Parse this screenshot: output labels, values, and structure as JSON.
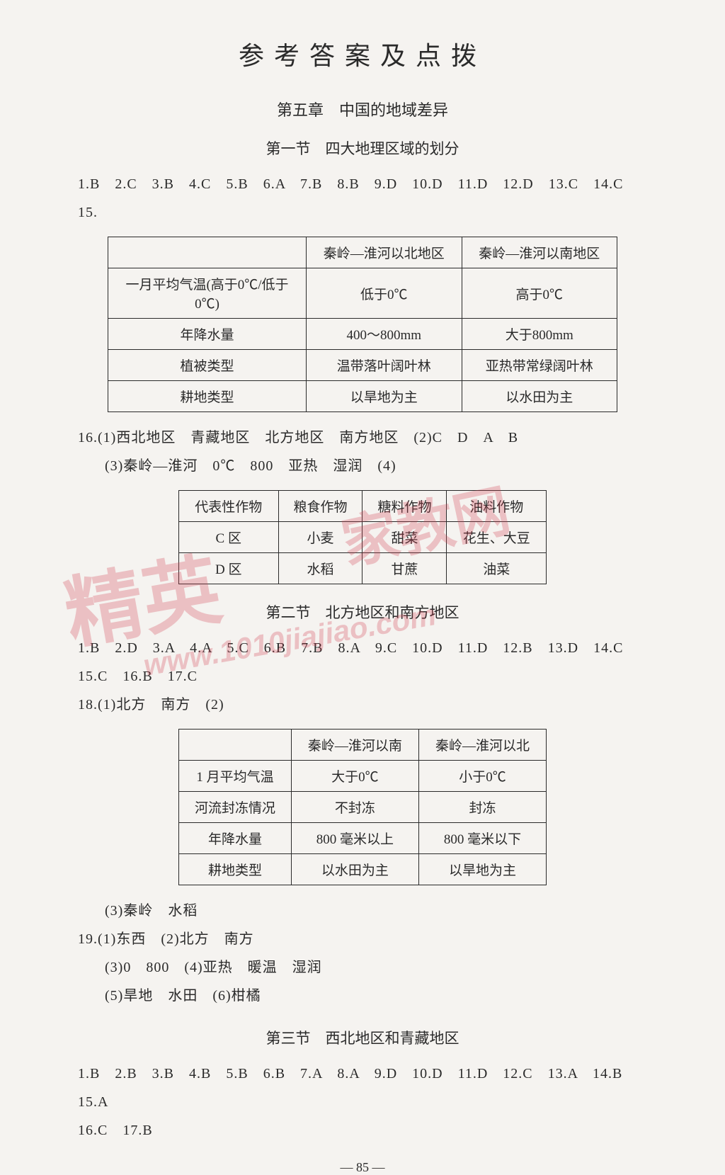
{
  "colors": {
    "background": "#f5f3f0",
    "text": "#2a2a2a",
    "border": "#2a2a2a",
    "watermark": "rgba(209,60,80,0.28)"
  },
  "typography": {
    "body_font": "SimSun",
    "title_font": "KaiTi",
    "body_size_pt": 15,
    "title_size_pt": 28
  },
  "main_title": "参考答案及点拨",
  "chapter_title": "第五章　中国的地域差异",
  "section1": {
    "title": "第一节　四大地理区域的划分",
    "answers_line1": "1.B　2.C　3.B　4.C　5.B　6.A　7.B　8.B　9.D　10.D　11.D　12.D　13.C　14.C",
    "answers_line2": "15.",
    "table": {
      "type": "table",
      "columns": [
        "",
        "秦岭—淮河以北地区",
        "秦岭—淮河以南地区"
      ],
      "rows": [
        [
          "一月平均气温(高于0℃/低于0℃)",
          "低于0℃",
          "高于0℃"
        ],
        [
          "年降水量",
          "400～800mm",
          "大于800mm"
        ],
        [
          "植被类型",
          "温带落叶阔叶林",
          "亚热带常绿阔叶林"
        ],
        [
          "耕地类型",
          "以旱地为主",
          "以水田为主"
        ]
      ],
      "border_color": "#2a2a2a",
      "cell_fontsize": 19
    },
    "q16_line1": "16.(1)西北地区　青藏地区　北方地区　南方地区　(2)C　D　A　B",
    "q16_line2": "(3)秦岭—淮河　0℃　800　亚热　湿润　(4)",
    "table2": {
      "type": "table",
      "columns": [
        "代表性作物",
        "粮食作物",
        "糖料作物",
        "油料作物"
      ],
      "rows": [
        [
          "C 区",
          "小麦",
          "甜菜",
          "花生、大豆"
        ],
        [
          "D 区",
          "水稻",
          "甘蔗",
          "油菜"
        ]
      ],
      "border_color": "#2a2a2a",
      "cell_fontsize": 19
    }
  },
  "section2": {
    "title": "第二节　北方地区和南方地区",
    "answers_line1": "1.B　2.D　3.A　4.A　5.C　6.B　7.B　8.A　9.C　10.D　11.D　12.B　13.D　14.C",
    "answers_line2": "15.C　16.B　17.C",
    "q18_line1": "18.(1)北方　南方　(2)",
    "table": {
      "type": "table",
      "columns": [
        "",
        "秦岭—淮河以南",
        "秦岭—淮河以北"
      ],
      "rows": [
        [
          "1 月平均气温",
          "大于0℃",
          "小于0℃"
        ],
        [
          "河流封冻情况",
          "不封冻",
          "封冻"
        ],
        [
          "年降水量",
          "800 毫米以上",
          "800 毫米以下"
        ],
        [
          "耕地类型",
          "以水田为主",
          "以旱地为主"
        ]
      ],
      "border_color": "#2a2a2a",
      "cell_fontsize": 19
    },
    "q18_line2": "(3)秦岭　水稻",
    "q19_line1": "19.(1)东西　(2)北方　南方",
    "q19_line2": "(3)0　800　(4)亚热　暖温　湿润",
    "q19_line3": "(5)旱地　水田　(6)柑橘"
  },
  "section3": {
    "title": "第三节　西北地区和青藏地区",
    "answers_line1": "1.B　2.B　3.B　4.B　5.B　6.B　7.A　8.A　9.D　10.D　11.D　12.C　13.A　14.B　15.A",
    "answers_line2": "16.C　17.B"
  },
  "page_number": "—  85  —",
  "watermark": {
    "text1": "精英",
    "text2": "家教网",
    "text3": "www.1010jiajiao.com"
  }
}
